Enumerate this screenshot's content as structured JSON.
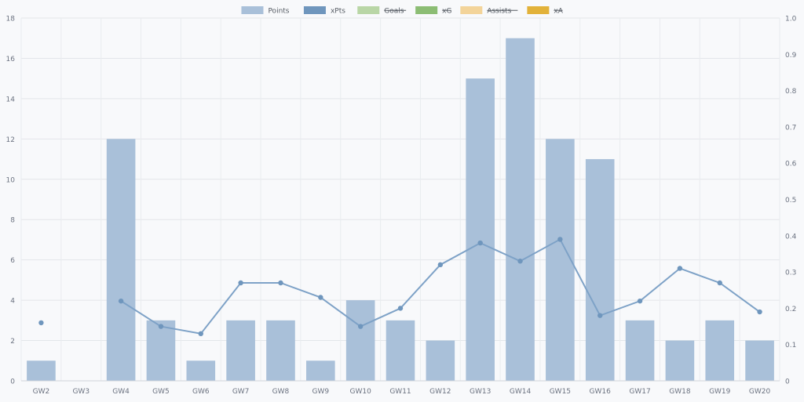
{
  "chart_data": {
    "type": "bar",
    "categories": [
      "GW2",
      "GW3",
      "GW4",
      "GW5",
      "GW6",
      "GW7",
      "GW8",
      "GW9",
      "GW10",
      "GW11",
      "GW12",
      "GW13",
      "GW14",
      "GW15",
      "GW16",
      "GW17",
      "GW18",
      "GW19",
      "GW20"
    ],
    "series": [
      {
        "name": "Points",
        "type": "bar",
        "axis": "left",
        "color": "#a9c0d9",
        "values": [
          1,
          0,
          12,
          3,
          1,
          3,
          3,
          1,
          4,
          3,
          2,
          15,
          17,
          12,
          11,
          3,
          2,
          3,
          2
        ]
      },
      {
        "name": "xPts",
        "type": "line",
        "axis": "right",
        "color": "#7ea2c7",
        "values": [
          0.16,
          null,
          0.22,
          0.15,
          0.13,
          0.27,
          0.27,
          0.23,
          0.15,
          0.2,
          0.32,
          0.38,
          0.33,
          0.39,
          0.18,
          0.22,
          0.31,
          0.27,
          0.19
        ]
      }
    ],
    "legend": [
      {
        "name": "Points",
        "color": "#a9c0d9",
        "hidden": false
      },
      {
        "name": "xPts",
        "color": "#6f96bd",
        "hidden": false
      },
      {
        "name": "Goals",
        "color": "#b9d6a6",
        "hidden": true
      },
      {
        "name": "xG",
        "color": "#8cbd74",
        "hidden": true
      },
      {
        "name": "Assists",
        "color": "#f3d49a",
        "hidden": true
      },
      {
        "name": "xA",
        "color": "#e2b23a",
        "hidden": true
      }
    ],
    "legend_position": "top-center",
    "y_left": {
      "min": 0,
      "max": 18,
      "ticks": [
        "0",
        "2",
        "4",
        "6",
        "8",
        "10",
        "12",
        "14",
        "16",
        "18"
      ]
    },
    "y_right": {
      "min": 0,
      "max": 1.0,
      "ticks": [
        "0",
        "0.1",
        "0.2",
        "0.3",
        "0.4",
        "0.5",
        "0.6",
        "0.7",
        "0.8",
        "0.9",
        "1.0"
      ]
    },
    "grid": true
  }
}
